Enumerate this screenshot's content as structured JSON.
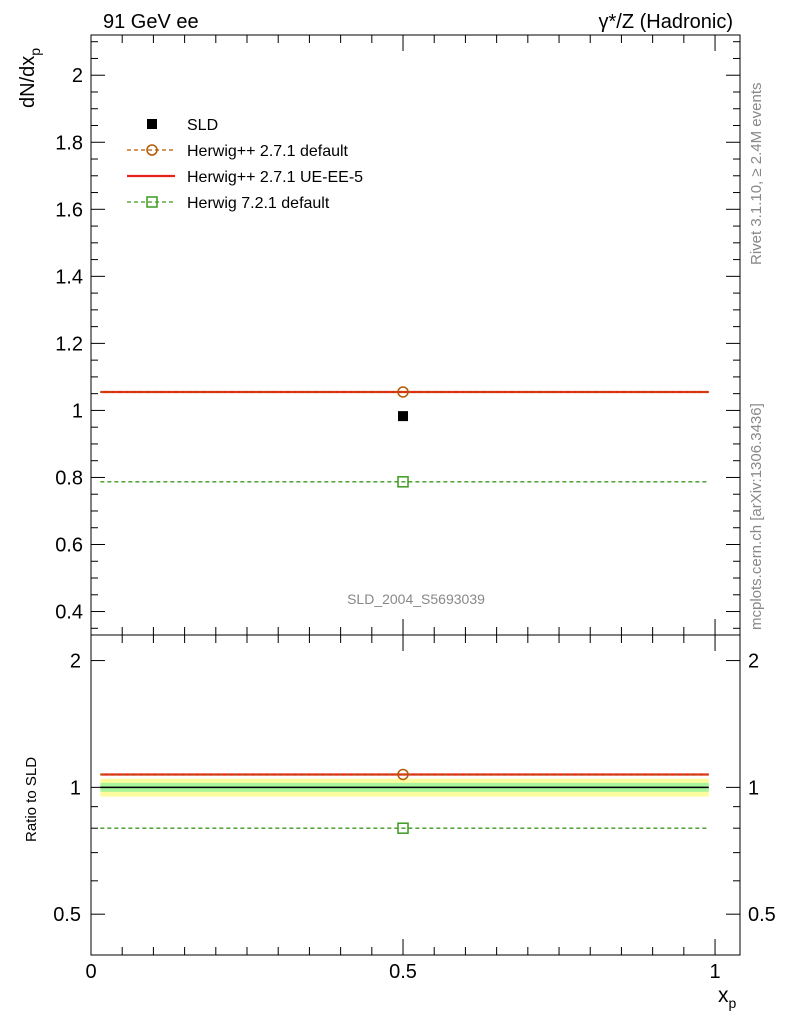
{
  "header": {
    "left": "91 GeV ee",
    "right": "γ*/Z (Hadronic)"
  },
  "side_text": {
    "rivet": "Rivet 3.1.10, ≥ 2.4M events",
    "mcplots": "mcplots.cern.ch [arXiv:1306.3436]"
  },
  "watermark": "SLD_2004_S5693039",
  "legend": {
    "items": [
      {
        "label": "SLD",
        "color": "#000000",
        "marker": "filled-square",
        "line": "none"
      },
      {
        "label": "Herwig++ 2.7.1 default",
        "color": "#b35900",
        "marker": "open-circle",
        "line": "dashed"
      },
      {
        "label": "Herwig++ 2.7.1 UE-EE-5",
        "color": "#e8231a",
        "marker": "none",
        "line": "solid"
      },
      {
        "label": "Herwig 7.2.1 default",
        "color": "#3c9a1e",
        "marker": "open-square",
        "line": "dashed"
      }
    ]
  },
  "main_plot": {
    "ylabel_main": "dN/dx",
    "ylabel_sub": "p",
    "ylim": [
      0.33,
      2.12
    ],
    "yticks": [
      "0.4",
      "0.6",
      "0.8",
      "1",
      "1.2",
      "1.4",
      "1.6",
      "1.8",
      "2"
    ]
  },
  "ratio_plot": {
    "ylabel": "Ratio to SLD",
    "ylim": [
      0.4,
      2.3
    ],
    "log_scale": true,
    "yticks_left": [
      "0.5",
      "1",
      "2"
    ],
    "yticks_right": [
      "0.5",
      "1",
      "2"
    ]
  },
  "xaxis": {
    "label_main": "x",
    "label_sub": "p",
    "xlim": [
      0,
      1.04
    ],
    "ticks": [
      "0",
      "0.5",
      "1"
    ]
  },
  "chart_data": {
    "type": "line",
    "x": [
      0.5
    ],
    "x_range": [
      0.015,
      0.99
    ],
    "series": [
      {
        "name": "SLD",
        "values": [
          0.983
        ],
        "kind": "data"
      },
      {
        "name": "Herwig++ 2.7.1 default",
        "values": [
          1.055
        ]
      },
      {
        "name": "Herwig++ 2.7.1 UE-EE-5",
        "values": [
          1.055
        ]
      },
      {
        "name": "Herwig 7.2.1 default",
        "values": [
          0.787
        ]
      }
    ],
    "ratio_series": [
      {
        "name": "Herwig++ 2.7.1 default",
        "values": [
          1.073
        ]
      },
      {
        "name": "Herwig++ 2.7.1 UE-EE-5",
        "values": [
          1.073
        ]
      },
      {
        "name": "Herwig 7.2.1 default",
        "values": [
          0.8
        ]
      }
    ],
    "ratio_bands": {
      "inner": [
        0.976,
        1.025
      ],
      "outer": [
        0.951,
        1.048
      ],
      "inner_color": "#a9f59c",
      "outer_color": "#fcfc9f"
    },
    "xlabel": "x_p",
    "ylabel": "dN/dx_p"
  }
}
